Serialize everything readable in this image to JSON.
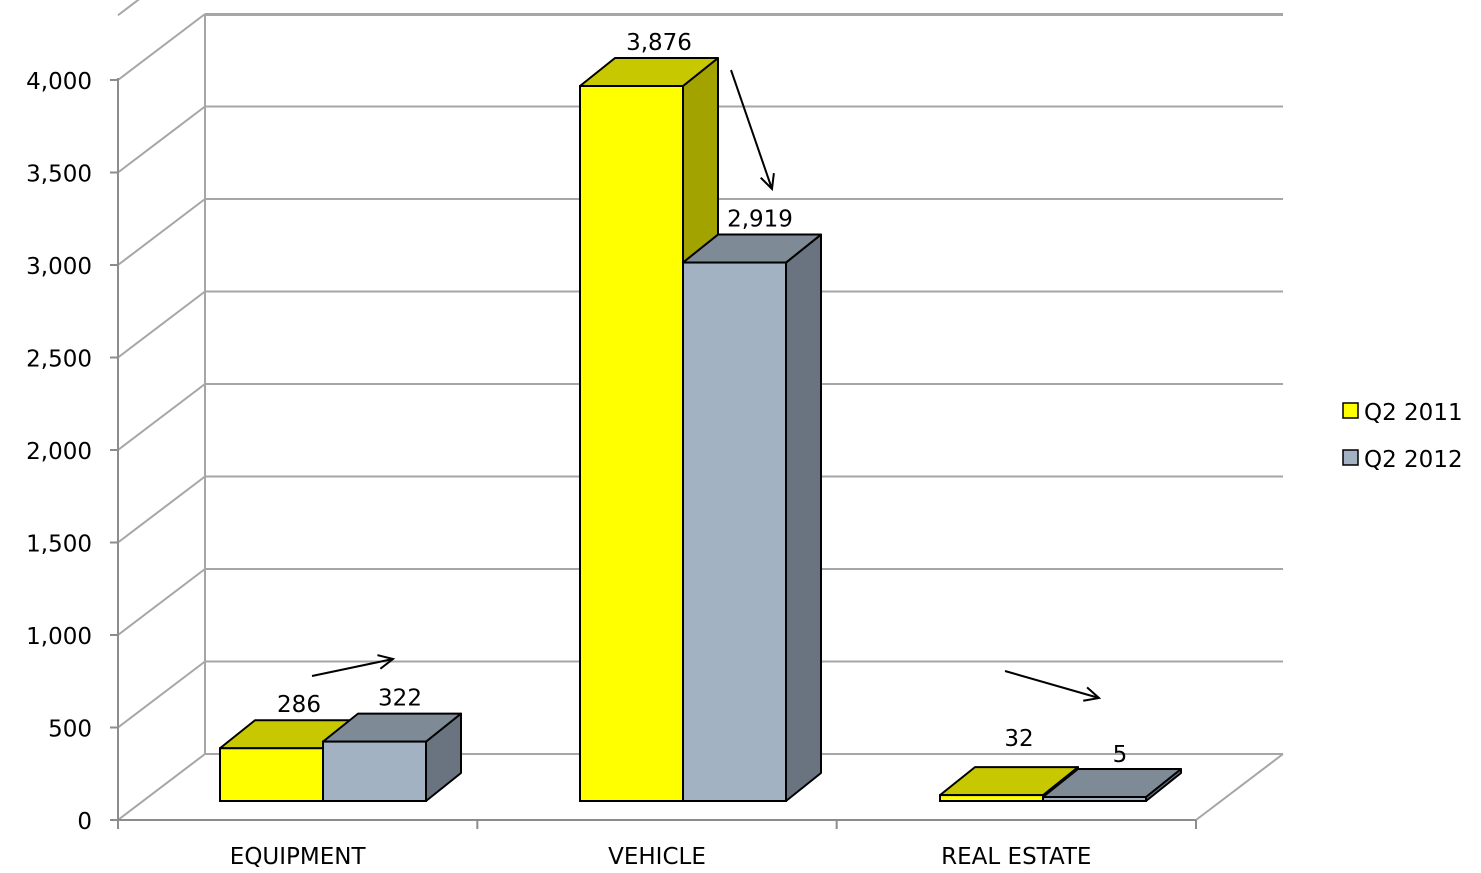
{
  "chart_data": {
    "type": "bar",
    "title": "",
    "xlabel": "",
    "ylabel": "",
    "categories": [
      "EQUIPMENT",
      "VEHICLE",
      "REAL ESTATE"
    ],
    "series": [
      {
        "name": "Q2 2011",
        "values": [
          286,
          3876,
          32
        ],
        "color": "#ffff00"
      },
      {
        "name": "Q2 2012",
        "values": [
          322,
          2919,
          5
        ],
        "color": "#a3b2c2"
      }
    ],
    "value_labels": [
      [
        "286",
        "3,876",
        "32"
      ],
      [
        "322",
        "2,919",
        "5"
      ]
    ],
    "ylim": [
      0,
      4000
    ],
    "y_ticks": [
      "0",
      "500",
      "1,000",
      "1,500",
      "2,000",
      "2,500",
      "3,000",
      "3,500",
      "4,000"
    ],
    "grid": true,
    "legend_position": "right",
    "bar_style": "3d",
    "side_colors": [
      "#a3a300",
      "#6a7480"
    ],
    "top_colors": [
      "#c8c800",
      "#7f8a97"
    ]
  }
}
